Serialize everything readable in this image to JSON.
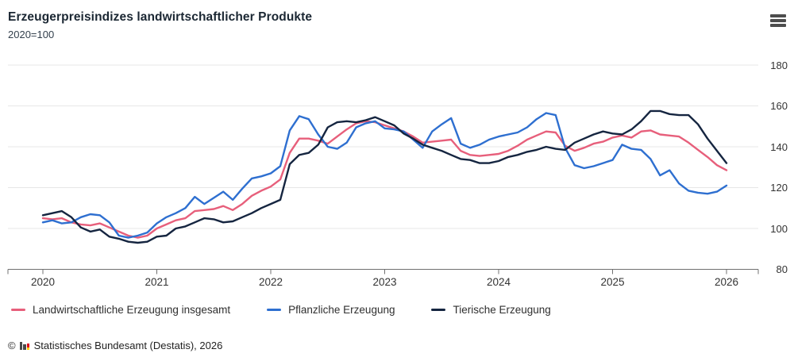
{
  "header": {
    "title": "Erzeugerpreisindizes landwirtschaftlicher Produkte",
    "subtitle": "2020=100"
  },
  "footer": {
    "copyright": "©",
    "source": "Statistisches Bundesamt (Destatis), 2026"
  },
  "chart_data": {
    "type": "line",
    "title": "Erzeugerpreisindizes landwirtschaftlicher Produkte",
    "subtitle": "2020=100",
    "x_unit": "month",
    "x_start": "2020-01",
    "x_end": "2026-01",
    "x_tick_labels": [
      "2020",
      "2021",
      "2022",
      "2023",
      "2024",
      "2025",
      "2026"
    ],
    "y_tick_labels": [
      "180",
      "160",
      "140",
      "120",
      "100",
      "80"
    ],
    "ylim": [
      80,
      180
    ],
    "grid": true,
    "legend_position": "bottom",
    "colors": {
      "total": "#e75f7b",
      "plant": "#2e6fd0",
      "animal": "#152540",
      "grid": "#e7e7e7",
      "axis": "#707070"
    },
    "series": [
      {
        "name": "Landwirtschaftliche Erzeugung insgesamt",
        "color": "#e75f7b",
        "values": [
          105.0,
          104.5,
          105.0,
          103.0,
          102.0,
          101.5,
          102.5,
          100.5,
          98.5,
          96.5,
          95.5,
          96.5,
          100.0,
          102.0,
          104.0,
          105.0,
          108.5,
          109.0,
          109.5,
          111.0,
          109.0,
          112.0,
          116.0,
          118.5,
          120.5,
          124.0,
          137.0,
          144.0,
          144.0,
          143.0,
          141.5,
          145.0,
          148.5,
          151.5,
          152.5,
          152.0,
          150.5,
          149.0,
          147.5,
          145.0,
          142.0,
          142.5,
          143.0,
          143.5,
          138.0,
          136.0,
          135.5,
          136.0,
          136.5,
          138.0,
          140.5,
          143.5,
          145.5,
          147.5,
          147.0,
          140.5,
          138.0,
          139.5,
          141.5,
          142.5,
          144.5,
          145.5,
          144.5,
          147.5,
          148.0,
          146.0,
          145.5,
          145.0,
          142.0,
          138.5,
          135.0,
          131.0,
          128.5
        ]
      },
      {
        "name": "Pflanzliche Erzeugung",
        "color": "#2e6fd0",
        "values": [
          103.0,
          104.0,
          102.5,
          103.0,
          105.5,
          107.0,
          106.5,
          103.0,
          96.5,
          95.5,
          96.5,
          98.0,
          102.5,
          105.5,
          107.5,
          110.0,
          115.5,
          112.0,
          115.0,
          118.0,
          114.0,
          119.5,
          124.5,
          125.5,
          127.0,
          130.5,
          148.0,
          155.0,
          153.5,
          146.0,
          140.0,
          139.0,
          142.0,
          149.5,
          151.5,
          152.5,
          149.0,
          148.5,
          147.5,
          143.5,
          139.5,
          147.5,
          151.0,
          154.0,
          141.5,
          139.5,
          141.0,
          143.5,
          145.0,
          146.0,
          147.0,
          149.5,
          153.5,
          156.5,
          155.5,
          139.5,
          131.0,
          129.5,
          130.5,
          132.0,
          133.5,
          141.0,
          139.0,
          138.5,
          134.0,
          126.0,
          128.5,
          122.0,
          118.5,
          117.5,
          117.0,
          118.0,
          121.0
        ]
      },
      {
        "name": "Tierische Erzeugung",
        "color": "#152540",
        "values": [
          106.5,
          107.5,
          108.5,
          105.5,
          100.5,
          98.5,
          99.5,
          96.0,
          95.0,
          93.5,
          93.0,
          93.5,
          96.0,
          96.5,
          100.0,
          101.0,
          103.0,
          105.0,
          104.5,
          103.0,
          103.5,
          105.5,
          107.5,
          110.0,
          112.0,
          114.0,
          131.5,
          136.0,
          137.0,
          141.0,
          149.5,
          152.0,
          152.5,
          152.0,
          153.0,
          154.5,
          152.5,
          150.5,
          146.5,
          144.0,
          141.0,
          139.5,
          138.0,
          136.0,
          134.0,
          133.5,
          132.0,
          132.0,
          133.0,
          135.0,
          136.0,
          137.5,
          138.5,
          140.0,
          139.0,
          138.5,
          142.0,
          144.0,
          146.0,
          147.5,
          146.5,
          146.0,
          148.5,
          152.5,
          157.5,
          157.5,
          156.0,
          155.5,
          155.5,
          151.0,
          144.0,
          138.0,
          132.0
        ]
      }
    ]
  }
}
